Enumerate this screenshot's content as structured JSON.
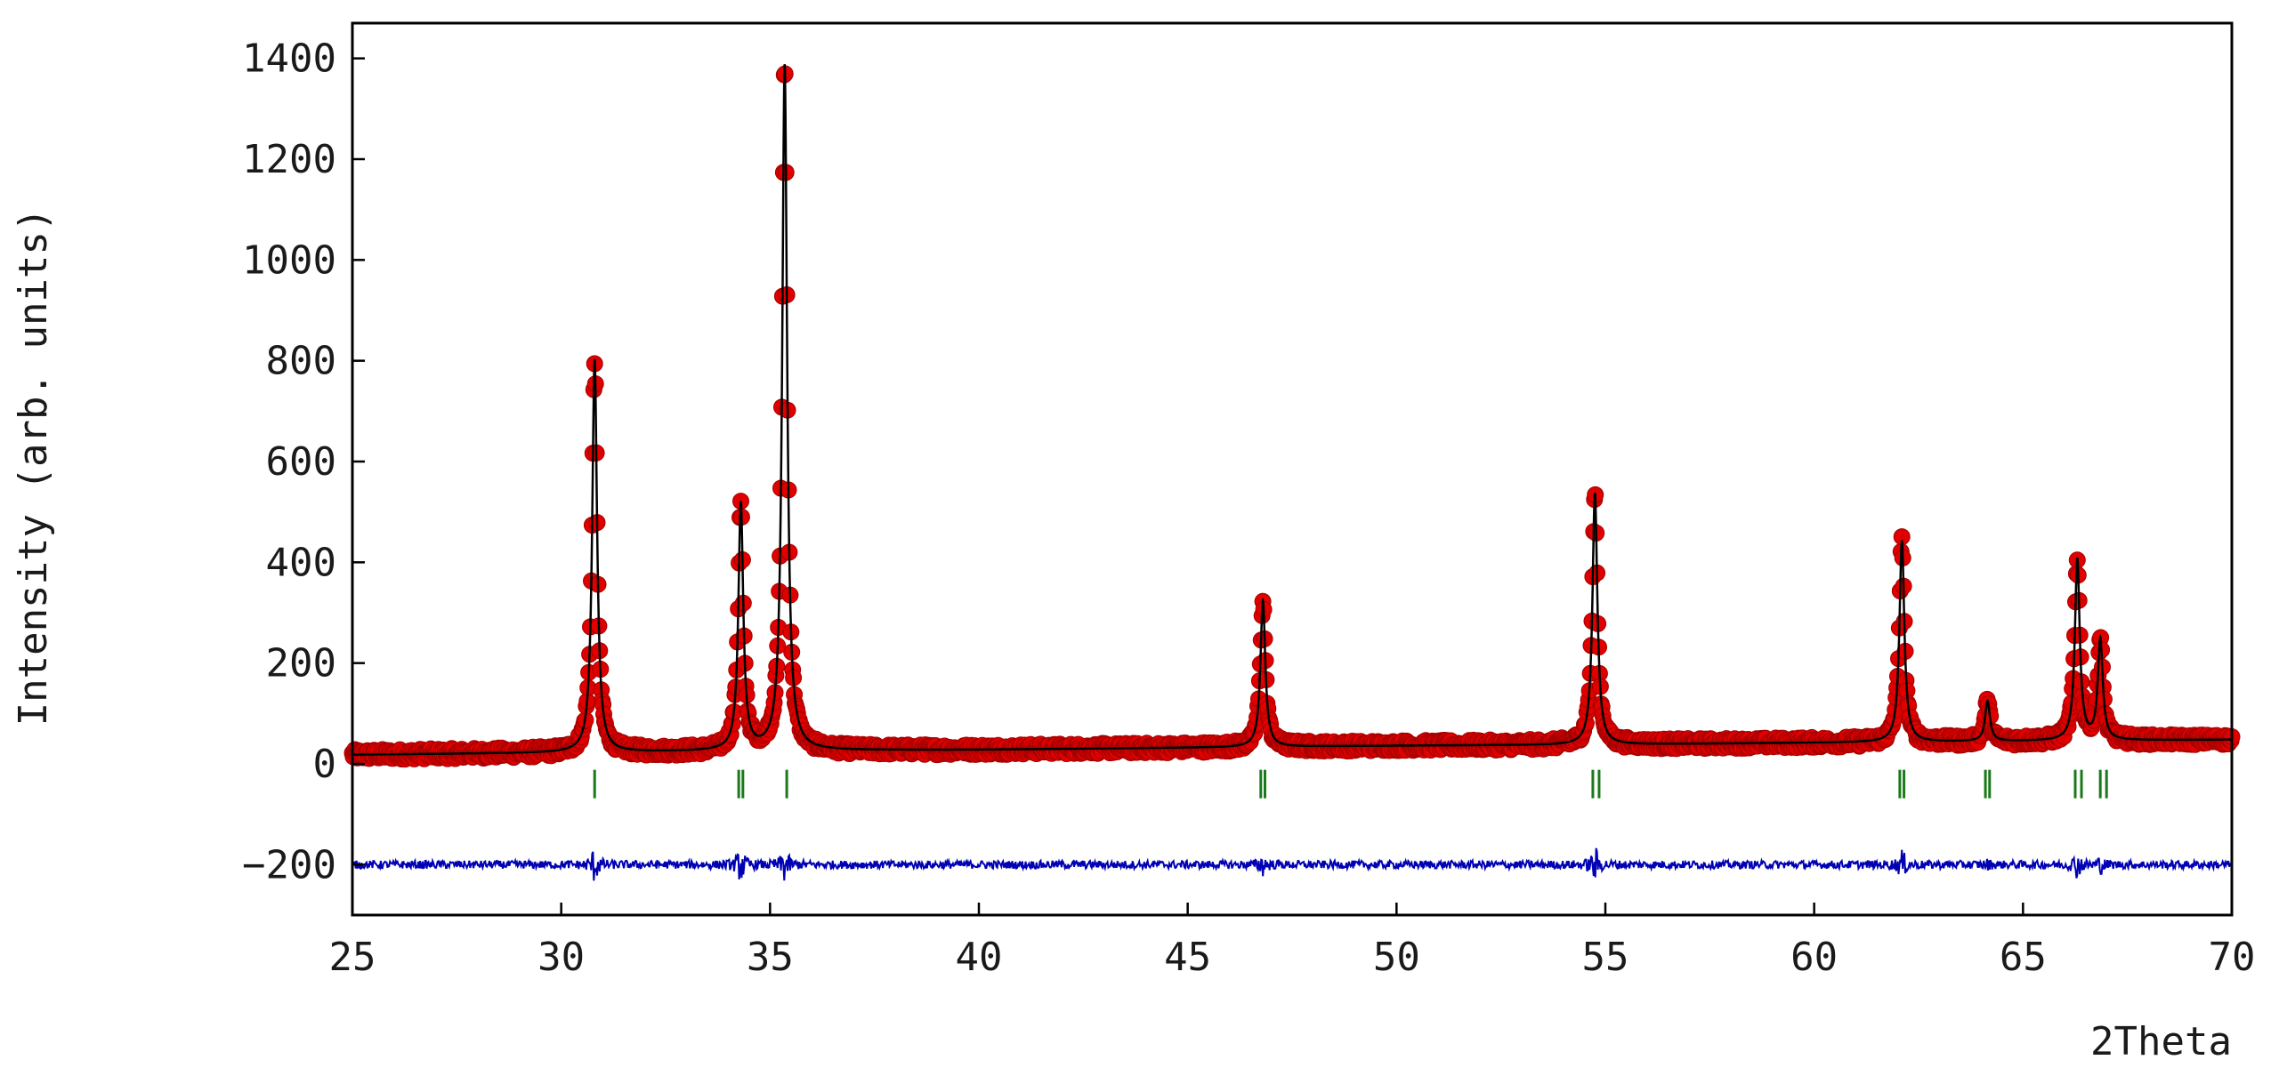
{
  "chart_data": {
    "type": "scatter",
    "title": "",
    "xlabel": "2Theta",
    "ylabel": "Intensity (arb. units)",
    "xlim": [
      25,
      70
    ],
    "ylim": [
      -300,
      1470
    ],
    "xticks": [
      25,
      30,
      35,
      40,
      45,
      50,
      55,
      60,
      65,
      70
    ],
    "yticks": [
      -200,
      0,
      200,
      400,
      600,
      800,
      1000,
      1200,
      1400
    ],
    "grid": false,
    "legend": "none",
    "colors": {
      "observed": "#e00000",
      "observed_edge": "#a00000",
      "calculated": "#000000",
      "difference": "#0000b4",
      "bragg": "#1a7a1a"
    },
    "background": [
      {
        "x": 25,
        "y": 18
      },
      {
        "x": 30,
        "y": 22
      },
      {
        "x": 35,
        "y": 26
      },
      {
        "x": 40,
        "y": 28
      },
      {
        "x": 45,
        "y": 32
      },
      {
        "x": 50,
        "y": 36
      },
      {
        "x": 55,
        "y": 38
      },
      {
        "x": 60,
        "y": 42
      },
      {
        "x": 65,
        "y": 45
      },
      {
        "x": 70,
        "y": 48
      }
    ],
    "peaks": [
      {
        "x": 30.8,
        "height": 780
      },
      {
        "x": 34.3,
        "height": 490
      },
      {
        "x": 35.35,
        "height": 1360
      },
      {
        "x": 46.8,
        "height": 290
      },
      {
        "x": 54.75,
        "height": 500
      },
      {
        "x": 62.1,
        "height": 400
      },
      {
        "x": 64.15,
        "height": 80
      },
      {
        "x": 66.3,
        "height": 360
      },
      {
        "x": 66.85,
        "height": 200
      }
    ],
    "bragg_positions": [
      30.8,
      34.25,
      34.35,
      35.4,
      46.75,
      46.85,
      54.7,
      54.85,
      62.05,
      62.15,
      64.1,
      64.2,
      66.25,
      66.4,
      66.85,
      67.0
    ],
    "bragg_y": -40,
    "difference_offset": -200
  }
}
